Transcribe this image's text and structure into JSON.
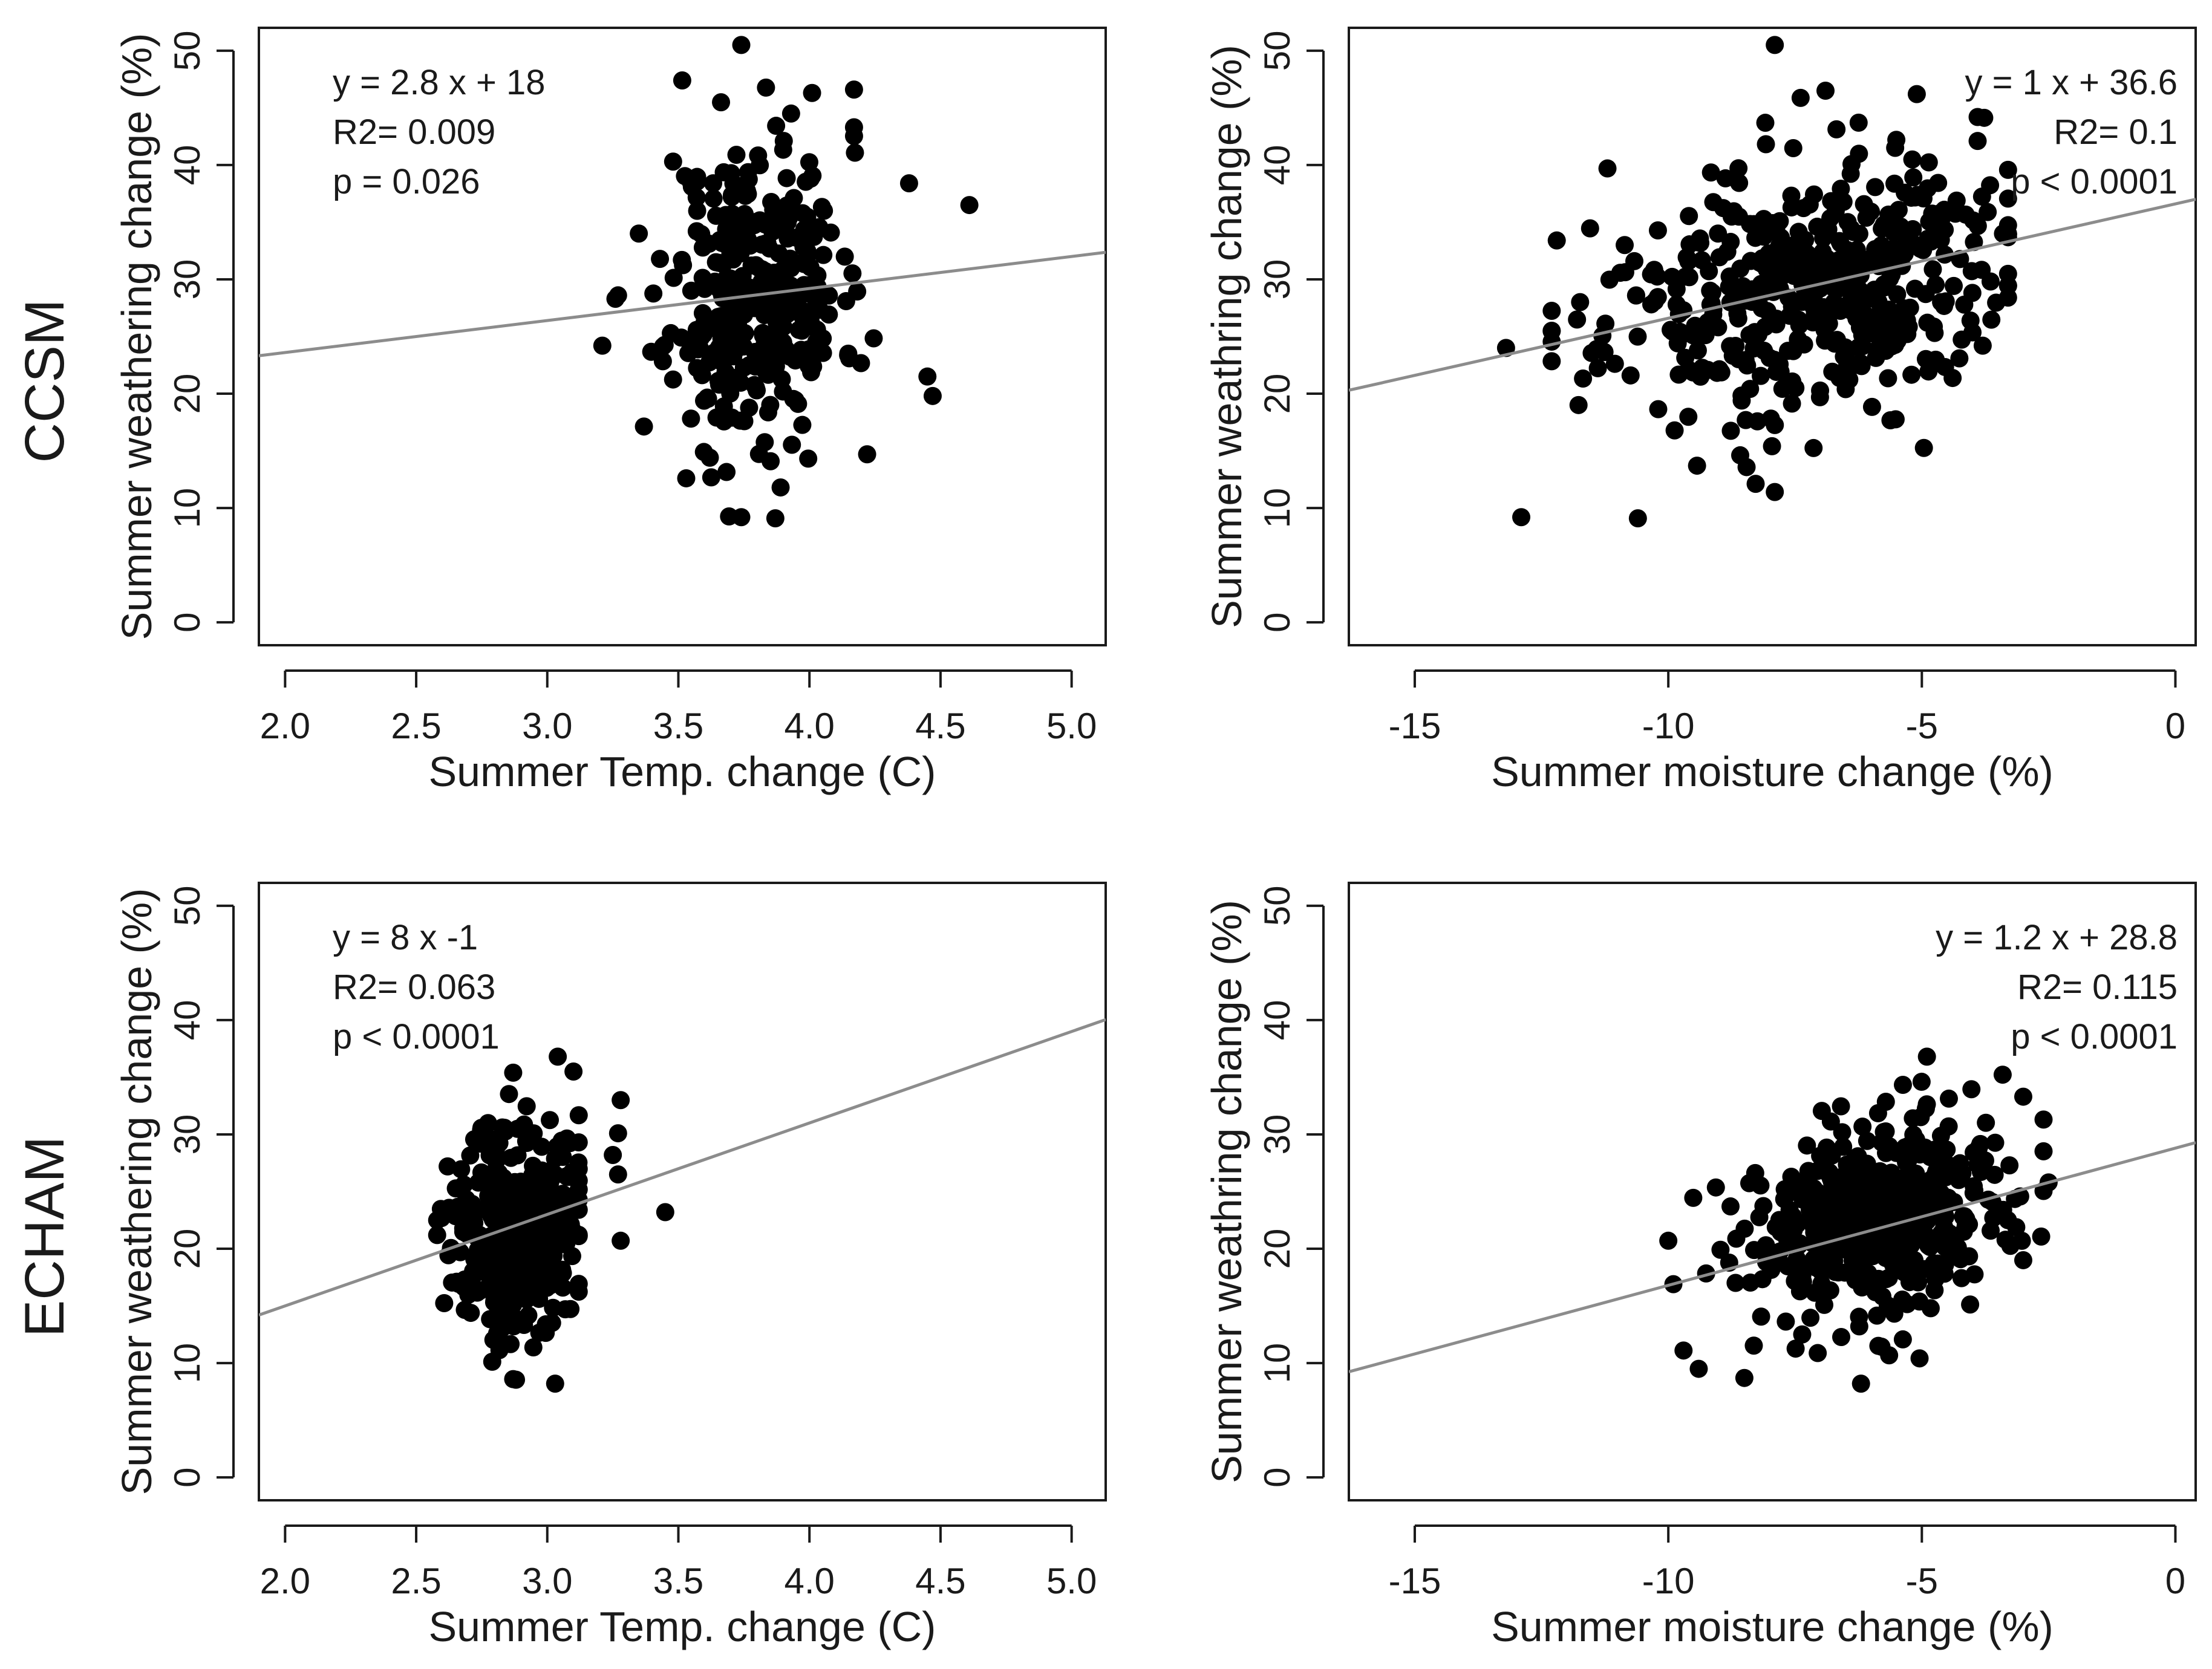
{
  "rows": [
    {
      "label": "CCSM"
    },
    {
      "label": "ECHAM"
    }
  ],
  "chart_data": [
    {
      "type": "scatter",
      "row": "CCSM",
      "xlabel": "Summer Temp. change (C)",
      "ylabel": "Summer weathering change (%)",
      "xlim": [
        1.9,
        5.13
      ],
      "ylim": [
        -2,
        52
      ],
      "xticks": [
        {
          "v": 2.0,
          "label": "2.0"
        },
        {
          "v": 2.5,
          "label": "2.5"
        },
        {
          "v": 3.0,
          "label": "3.0"
        },
        {
          "v": 3.5,
          "label": "3.5"
        },
        {
          "v": 4.0,
          "label": "4.0"
        },
        {
          "v": 4.5,
          "label": "4.5"
        },
        {
          "v": 5.0,
          "label": "5.0"
        }
      ],
      "yticks": [
        {
          "v": 0,
          "label": "0"
        },
        {
          "v": 10,
          "label": "10"
        },
        {
          "v": 20,
          "label": "20"
        },
        {
          "v": 30,
          "label": "30"
        },
        {
          "v": 40,
          "label": "40"
        },
        {
          "v": 50,
          "label": "50"
        }
      ],
      "fit": {
        "slope": 2.8,
        "intercept": 18.0
      },
      "annotation": {
        "lines": [
          "y =  2.8 x + 18",
          "R2=  0.009",
          "p = 0.026"
        ],
        "align": "left"
      },
      "cluster": {
        "n": 340,
        "seed": 11,
        "x_mean": 3.8,
        "x_sd": 0.16,
        "y_mean": 29,
        "y_sd": 6.5,
        "x_min": 3.2,
        "x_max": 4.65,
        "y_min": 9,
        "y_max": 51
      },
      "points": [
        [
          3.74,
          50.5
        ],
        [
          4.01,
          46.3
        ],
        [
          4.17,
          46.6
        ],
        [
          3.93,
          44.5
        ],
        [
          4.61,
          36.5
        ],
        [
          3.21,
          24.2
        ],
        [
          3.26,
          28.3
        ],
        [
          3.27,
          28.6
        ],
        [
          3.48,
          40.3
        ],
        [
          3.53,
          12.6
        ],
        [
          3.74,
          9.2
        ],
        [
          3.87,
          9.1
        ],
        [
          4.22,
          14.7
        ],
        [
          4.45,
          21.5
        ],
        [
          4.47,
          19.8
        ],
        [
          4.38,
          38.4
        ],
        [
          4.17,
          43.3
        ],
        [
          3.62,
          14.4
        ],
        [
          3.89,
          11.8
        ]
      ]
    },
    {
      "type": "scatter",
      "row": "CCSM",
      "xlabel": "Summer moisture change (%)",
      "ylabel": "Summer weathring change (%)",
      "xlim": [
        -16.3,
        0.4
      ],
      "ylim": [
        -2,
        52
      ],
      "xticks": [
        {
          "v": -15,
          "label": "-15"
        },
        {
          "v": -10,
          "label": "-10"
        },
        {
          "v": -5,
          "label": "-5"
        },
        {
          "v": 0,
          "label": "0"
        }
      ],
      "yticks": [
        {
          "v": 0,
          "label": "0"
        },
        {
          "v": 10,
          "label": "10"
        },
        {
          "v": 20,
          "label": "20"
        },
        {
          "v": 30,
          "label": "30"
        },
        {
          "v": 40,
          "label": "40"
        },
        {
          "v": 50,
          "label": "50"
        }
      ],
      "fit": {
        "slope": 1.0,
        "intercept": 36.6
      },
      "annotation": {
        "lines": [
          "y =  1 x + 36.6",
          "R2=  0.1",
          "p < 0.0001"
        ],
        "align": "right"
      },
      "cluster": {
        "n": 470,
        "seed": 23,
        "x_mean": -7.3,
        "x_sd": 2.0,
        "y_mean": 29,
        "y_sd": 5.5,
        "x_min": -12.3,
        "x_max": -3.3,
        "y_min": 11,
        "y_max": 47
      },
      "points": [
        [
          -7.9,
          50.5
        ],
        [
          -6.9,
          46.5
        ],
        [
          -5.1,
          46.2
        ],
        [
          -3.9,
          44.2
        ],
        [
          -3.9,
          42.1
        ],
        [
          -13.2,
          24.0
        ],
        [
          -12.9,
          9.2
        ],
        [
          -10.6,
          9.1
        ],
        [
          -12.2,
          33.4
        ],
        [
          -7.9,
          11.4
        ],
        [
          -11.2,
          39.7
        ],
        [
          -3.4,
          34.0
        ],
        [
          -3.8,
          24.2
        ]
      ]
    },
    {
      "type": "scatter",
      "row": "ECHAM",
      "xlabel": "Summer Temp. change (C)",
      "ylabel": "Summer weathering change (%)",
      "xlim": [
        1.9,
        5.13
      ],
      "ylim": [
        -2,
        52
      ],
      "xticks": [
        {
          "v": 2.0,
          "label": "2.0"
        },
        {
          "v": 2.5,
          "label": "2.5"
        },
        {
          "v": 3.0,
          "label": "3.0"
        },
        {
          "v": 3.5,
          "label": "3.5"
        },
        {
          "v": 4.0,
          "label": "4.0"
        },
        {
          "v": 4.5,
          "label": "4.5"
        },
        {
          "v": 5.0,
          "label": "5.0"
        }
      ],
      "yticks": [
        {
          "v": 0,
          "label": "0"
        },
        {
          "v": 10,
          "label": "10"
        },
        {
          "v": 20,
          "label": "20"
        },
        {
          "v": 30,
          "label": "30"
        },
        {
          "v": 40,
          "label": "40"
        },
        {
          "v": 50,
          "label": "50"
        }
      ],
      "fit": {
        "slope": 8.0,
        "intercept": -1.0
      },
      "annotation": {
        "lines": [
          "y =  8 x  -1",
          "R2=  0.063",
          "p < 0.0001"
        ],
        "align": "left"
      },
      "cluster": {
        "n": 340,
        "seed": 37,
        "x_mean": 2.88,
        "x_sd": 0.12,
        "y_mean": 22,
        "y_sd": 4.8,
        "x_min": 2.58,
        "x_max": 3.12,
        "y_min": 8.5,
        "y_max": 37
      },
      "points": [
        [
          3.45,
          23.2
        ],
        [
          3.28,
          20.7
        ],
        [
          3.28,
          33.0
        ],
        [
          3.27,
          30.1
        ],
        [
          3.25,
          28.2
        ],
        [
          3.27,
          26.5
        ],
        [
          3.04,
          36.8
        ],
        [
          3.1,
          35.5
        ],
        [
          2.87,
          35.4
        ],
        [
          2.87,
          8.6
        ],
        [
          3.03,
          8.2
        ],
        [
          2.58,
          21.2
        ],
        [
          2.62,
          27.2
        ]
      ]
    },
    {
      "type": "scatter",
      "row": "ECHAM",
      "xlabel": "Summer moisture change (%)",
      "ylabel": "Summer weathring change (%)",
      "xlim": [
        -16.3,
        0.4
      ],
      "ylim": [
        -2,
        52
      ],
      "xticks": [
        {
          "v": -15,
          "label": "-15"
        },
        {
          "v": -10,
          "label": "-10"
        },
        {
          "v": -5,
          "label": "-5"
        },
        {
          "v": 0,
          "label": "0"
        }
      ],
      "yticks": [
        {
          "v": 0,
          "label": "0"
        },
        {
          "v": 10,
          "label": "10"
        },
        {
          "v": 20,
          "label": "20"
        },
        {
          "v": 30,
          "label": "30"
        },
        {
          "v": 40,
          "label": "40"
        },
        {
          "v": 50,
          "label": "50"
        }
      ],
      "fit": {
        "slope": 1.2,
        "intercept": 28.8
      },
      "annotation": {
        "lines": [
          "y =  1.2 x + 28.8",
          "R2=  0.115",
          "p < 0.0001"
        ],
        "align": "right"
      },
      "cluster": {
        "n": 520,
        "seed": 53,
        "x_mean": -5.8,
        "x_sd": 1.3,
        "y_mean": 22.5,
        "y_sd": 4.2,
        "x_min": -10.0,
        "x_max": -2.6,
        "y_min": 8,
        "y_max": 37
      },
      "points": [
        [
          -10.0,
          20.7
        ],
        [
          -9.9,
          16.9
        ],
        [
          -9.7,
          11.1
        ],
        [
          -8.5,
          8.7
        ],
        [
          -6.2,
          8.2
        ],
        [
          -4.9,
          36.8
        ],
        [
          -2.6,
          31.3
        ],
        [
          -3.0,
          33.3
        ],
        [
          -2.5,
          25.8
        ],
        [
          -3.0,
          19.0
        ],
        [
          -9.4,
          9.5
        ]
      ]
    }
  ]
}
